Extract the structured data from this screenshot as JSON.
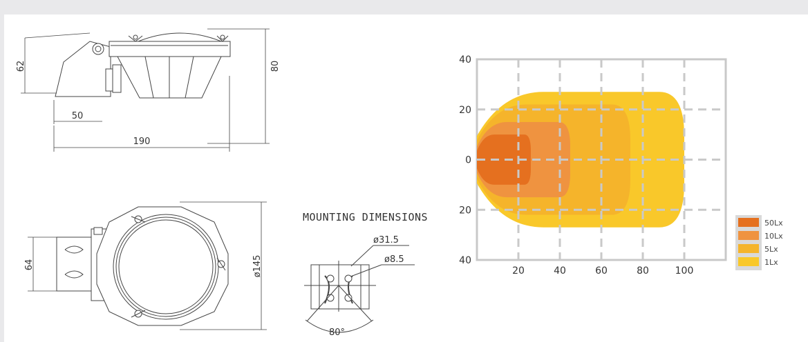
{
  "diagram": {
    "side_view": {
      "dims": {
        "height_total": "80",
        "head_offset": "62",
        "bracket": "50",
        "length": "190"
      }
    },
    "top_view": {
      "dims": {
        "bracket_width": "64",
        "diameter": "ø145"
      }
    },
    "mounting": {
      "title": "MOUNTING DIMENSIONS",
      "hole_large": "ø31.5",
      "hole_small": "ø8.5",
      "angle": "80°"
    }
  },
  "chart_data": {
    "type": "area",
    "title": "",
    "x_ticks": [
      "20",
      "40",
      "60",
      "80",
      "100"
    ],
    "y_ticks": [
      "40",
      "20",
      "0",
      "20",
      "40"
    ],
    "xlim": [
      0,
      120
    ],
    "ylim": [
      -40,
      40
    ],
    "grid": "dashed",
    "legend_position": "right-bottom",
    "series": [
      {
        "name": "1Lx",
        "color": "#f9c82a",
        "extent_x": [
          0,
          100
        ],
        "half_width_y": 27
      },
      {
        "name": "5Lx",
        "color": "#f5b42b",
        "extent_x": [
          0,
          74
        ],
        "half_width_y": 22
      },
      {
        "name": "10Lx",
        "color": "#ef9340",
        "extent_x": [
          0,
          45
        ],
        "half_width_y": 15
      },
      {
        "name": "50Lx",
        "color": "#e5701f",
        "extent_x": [
          0,
          26
        ],
        "half_width_y": 10
      }
    ]
  }
}
